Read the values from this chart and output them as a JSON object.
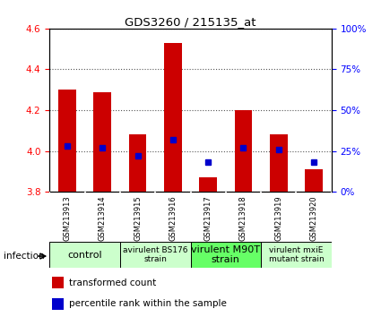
{
  "title": "GDS3260 / 215135_at",
  "samples": [
    "GSM213913",
    "GSM213914",
    "GSM213915",
    "GSM213916",
    "GSM213917",
    "GSM213918",
    "GSM213919",
    "GSM213920"
  ],
  "bar_values": [
    4.3,
    4.29,
    4.08,
    4.53,
    3.87,
    4.2,
    4.08,
    3.91
  ],
  "percentile_values": [
    28,
    27,
    22,
    32,
    18,
    27,
    26,
    18
  ],
  "bar_bottom": 3.8,
  "ylim_left": [
    3.8,
    4.6
  ],
  "ylim_right": [
    0,
    100
  ],
  "yticks_left": [
    3.8,
    4.0,
    4.2,
    4.4,
    4.6
  ],
  "yticks_right": [
    0,
    25,
    50,
    75,
    100
  ],
  "bar_color": "#cc0000",
  "dot_color": "#0000cc",
  "groups": [
    {
      "label": "control",
      "samples": [
        0,
        1
      ],
      "color": "#ccffcc",
      "fontsize": 8
    },
    {
      "label": "avirulent BS176\nstrain",
      "samples": [
        2,
        3
      ],
      "color": "#ccffcc",
      "fontsize": 6.5
    },
    {
      "label": "virulent M90T\nstrain",
      "samples": [
        4,
        5
      ],
      "color": "#66ff66",
      "fontsize": 8
    },
    {
      "label": "virulent mxiE\nmutant strain",
      "samples": [
        6,
        7
      ],
      "color": "#ccffcc",
      "fontsize": 6.5
    }
  ],
  "infection_label": "infection",
  "legend_items": [
    {
      "color": "#cc0000",
      "label": "transformed count"
    },
    {
      "color": "#0000cc",
      "label": "percentile rank within the sample"
    }
  ],
  "background_color": "#ffffff",
  "plot_bg_color": "#ffffff",
  "tick_area_color": "#c8c8c8",
  "bar_width": 0.5
}
